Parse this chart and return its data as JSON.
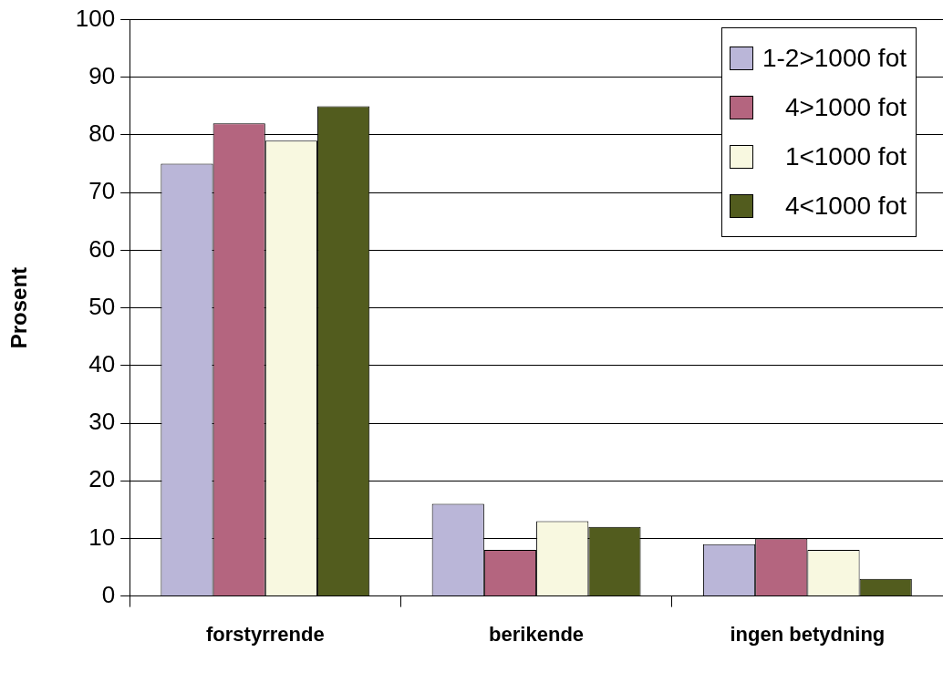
{
  "chart_data": {
    "type": "bar",
    "ylabel": "Prosent",
    "categories": [
      "forstyrrende",
      "berikende",
      "ingen betydning"
    ],
    "series": [
      {
        "name": "1-2>1000 fot",
        "color": "#bab6d8",
        "values": [
          75,
          16,
          9
        ]
      },
      {
        "name": "4>1000 fot",
        "color": "#b4657f",
        "values": [
          82,
          8,
          10
        ]
      },
      {
        "name": "1<1000 fot",
        "color": "#f8f8e0",
        "values": [
          79,
          13,
          8
        ]
      },
      {
        "name": "4<1000 fot",
        "color": "#525c1e",
        "values": [
          85,
          12,
          3
        ]
      }
    ],
    "ylim": [
      0,
      100
    ],
    "yticks": [
      0,
      10,
      20,
      30,
      40,
      50,
      60,
      70,
      80,
      90,
      100
    ],
    "grid": "y",
    "legend": "top right"
  }
}
